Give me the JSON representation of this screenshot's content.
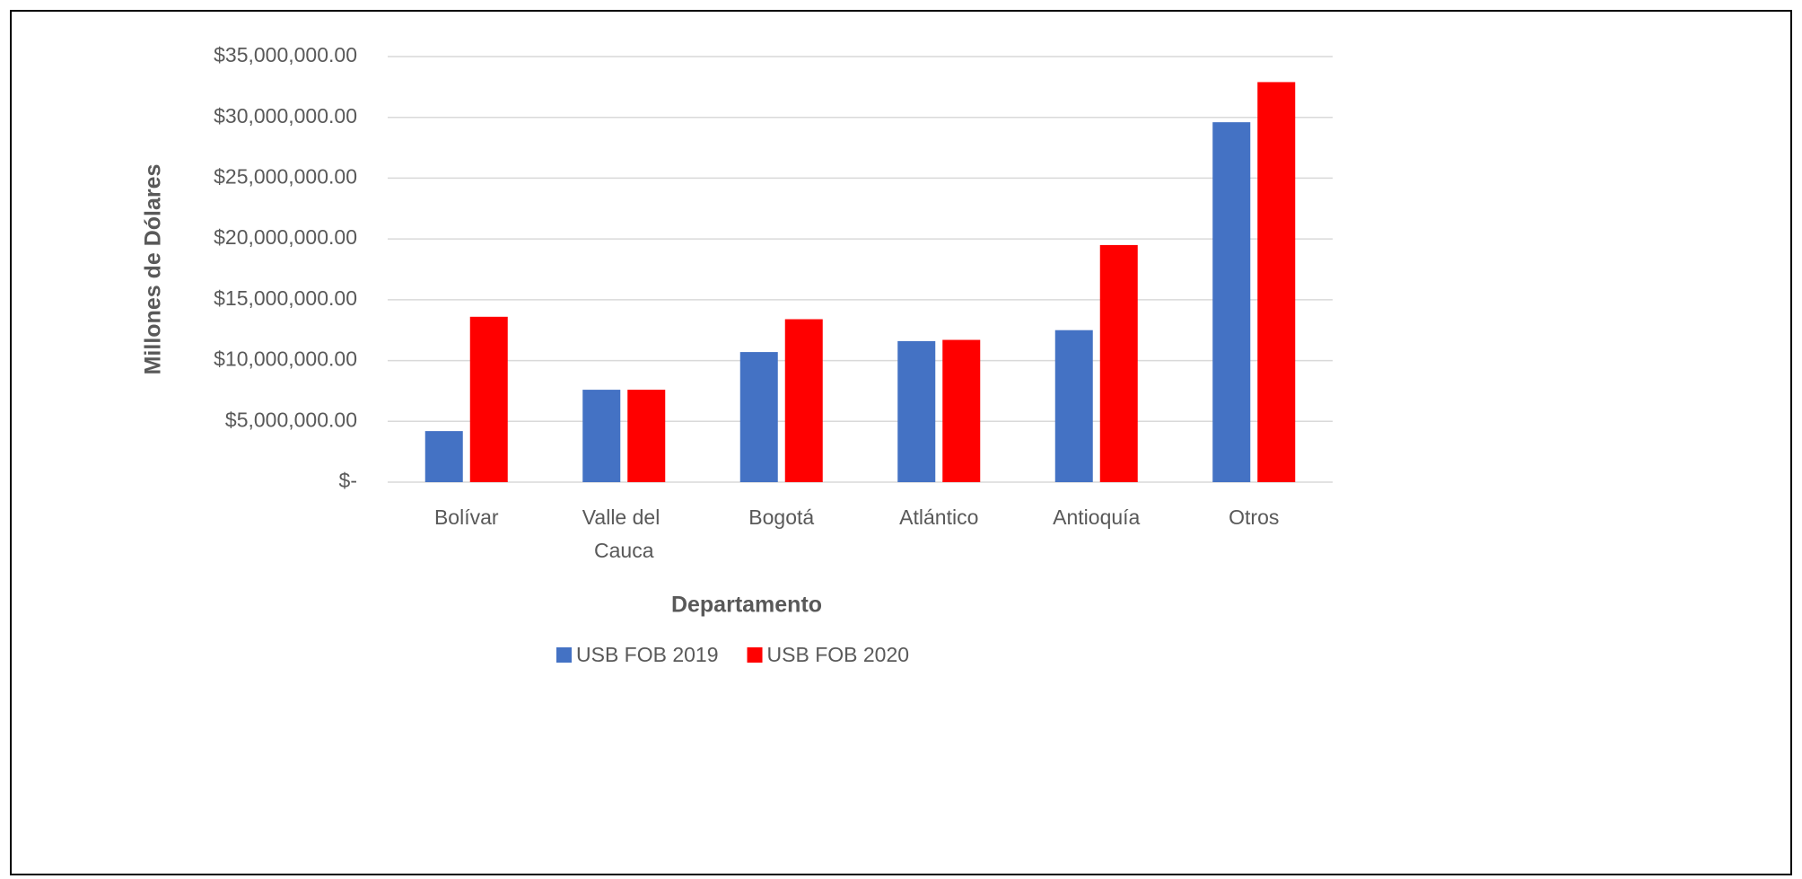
{
  "chart_data": {
    "type": "bar",
    "categories": [
      "Bolívar",
      "Valle del Cauca",
      "Bogotá",
      "Atlántico",
      "Antioquía",
      "Otros"
    ],
    "series": [
      {
        "name": "USB FOB 2019",
        "color": "#4472c4",
        "values": [
          4200000,
          7600000,
          10700000,
          11600000,
          12500000,
          29600000
        ]
      },
      {
        "name": "USB FOB 2020",
        "color": "#ff0000",
        "values": [
          13600000,
          7600000,
          13400000,
          11700000,
          19500000,
          32900000
        ]
      }
    ],
    "ylabel": "Millones de Dólares",
    "xlabel": "Departamento",
    "ylim": [
      0,
      35000000
    ],
    "yticks": [
      {
        "value": 0,
        "label": "$-"
      },
      {
        "value": 5000000,
        "label": "$5,000,000.00"
      },
      {
        "value": 10000000,
        "label": "$10,000,000.00"
      },
      {
        "value": 15000000,
        "label": "$15,000,000.00"
      },
      {
        "value": 20000000,
        "label": "$20,000,000.00"
      },
      {
        "value": 25000000,
        "label": "$25,000,000.00"
      },
      {
        "value": 30000000,
        "label": "$30,000,000.00"
      },
      {
        "value": 35000000,
        "label": "$35,000,000.00"
      }
    ],
    "grid": true,
    "legend": "bottom"
  }
}
